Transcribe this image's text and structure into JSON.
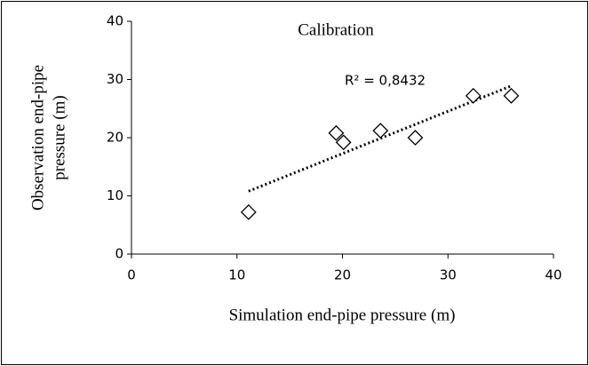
{
  "chart_data": {
    "type": "scatter",
    "title": "Calibration",
    "x_label": "Simulation end-pipe pressure (m)",
    "y_label": [
      "Observation end-pipe",
      "pressure (m)"
    ],
    "series": [
      {
        "name": "Calibration",
        "color": "#000000",
        "x": [
          11.1,
          19.4,
          20.1,
          23.6,
          26.9,
          32.4,
          36.0
        ],
        "values": [
          7.2,
          20.8,
          19.2,
          21.2,
          20.0,
          27.2,
          27.2
        ]
      }
    ],
    "trendline": {
      "x": [
        11.1,
        36.0
      ],
      "values": [
        10.8,
        28.9
      ],
      "annotation": "R² = 0,8432"
    },
    "xlim": [
      0,
      40
    ],
    "xticks": [
      0,
      10,
      20,
      30,
      40
    ],
    "ylim": [
      0,
      40
    ],
    "yticks": [
      0,
      10,
      20,
      30,
      40
    ],
    "grid": false
  }
}
